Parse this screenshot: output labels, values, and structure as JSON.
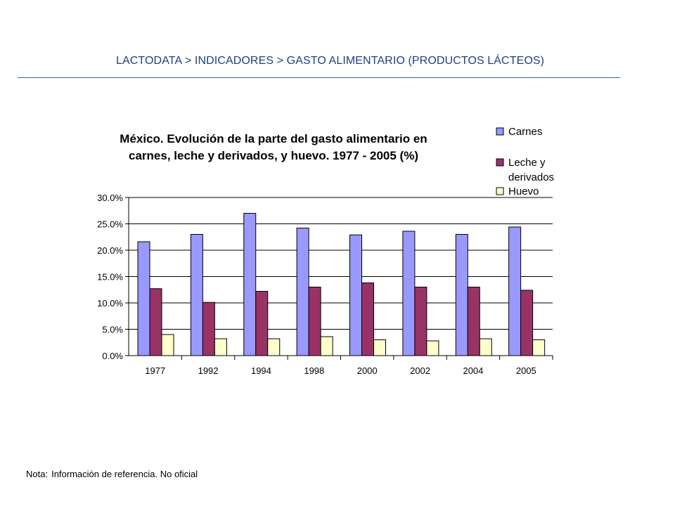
{
  "header": {
    "breadcrumb": "LACTODATA > INDICADORES > GASTO ALIMENTARIO (PRODUCTOS LÁCTEOS)"
  },
  "footnote": {
    "label": "Nota:",
    "text": "Información de referencia. No oficial"
  },
  "colors": {
    "header_text": "#1f3f86",
    "rule": "#2a6aa8",
    "carnes": "#9999ff",
    "leche": "#993366",
    "huevo": "#ffffcc"
  },
  "chart_data": {
    "type": "bar",
    "title": "México. Evolución de la parte del gasto alimentario en carnes, leche y derivados, y huevo. 1977 - 2005 (%)",
    "title_lines": [
      "México. Evolución de la parte del gasto alimentario en",
      "carnes, leche y derivados, y huevo. 1977 - 2005 (%)"
    ],
    "categories": [
      "1977",
      "1992",
      "1994",
      "1998",
      "2000",
      "2002",
      "2004",
      "2005"
    ],
    "series": [
      {
        "name": "Carnes",
        "legend_lines": [
          "Carnes"
        ],
        "color": "#9999ff",
        "values": [
          21.6,
          23.0,
          27.0,
          24.2,
          22.9,
          23.6,
          23.0,
          24.4
        ]
      },
      {
        "name": "Leche y derivados",
        "legend_lines": [
          "Leche y",
          "derivados"
        ],
        "color": "#993366",
        "values": [
          12.7,
          10.1,
          12.2,
          13.0,
          13.8,
          13.0,
          13.0,
          12.4
        ]
      },
      {
        "name": "Huevo",
        "legend_lines": [
          "Huevo"
        ],
        "color": "#ffffcc",
        "values": [
          4.0,
          3.2,
          3.2,
          3.6,
          3.0,
          2.8,
          3.2,
          3.0
        ]
      }
    ],
    "y_ticks": [
      "0.0%",
      "5.0%",
      "10.0%",
      "15.0%",
      "20.0%",
      "25.0%",
      "30.0%"
    ],
    "ylim": [
      0,
      30
    ],
    "y_step": 5,
    "grid": true,
    "legend_position": "top-right",
    "xlabel": "",
    "ylabel": ""
  }
}
